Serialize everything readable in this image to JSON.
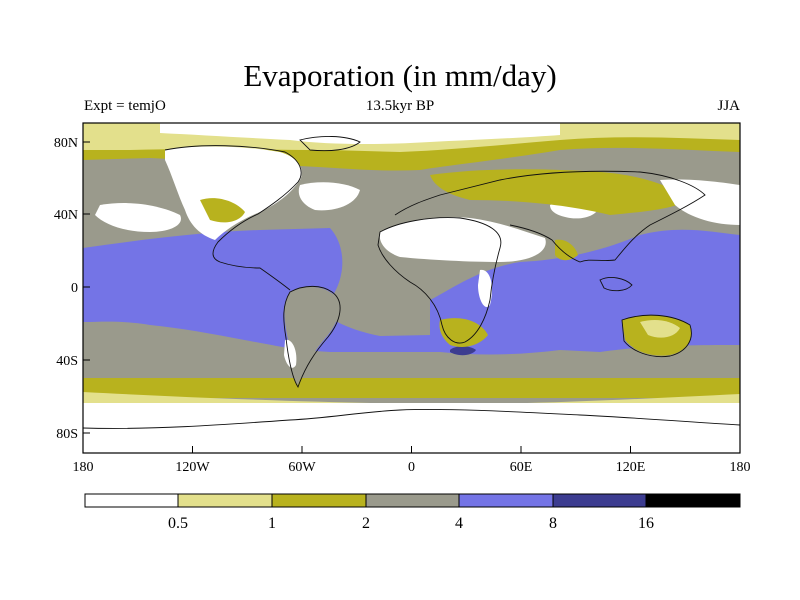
{
  "title": "Evaporation (in mm/day)",
  "subtitle_left": "Expt = temjO",
  "subtitle_center": "13.5kyr BP",
  "subtitle_right": "JJA",
  "lat_ticks": [
    "80N",
    "40N",
    "0",
    "40S",
    "80S"
  ],
  "lon_ticks": [
    "180",
    "120W",
    "60W",
    "0",
    "60E",
    "120E",
    "180"
  ],
  "colorbar": {
    "levels": [
      "0.5",
      "1",
      "2",
      "4",
      "8",
      "16"
    ],
    "colors": [
      "#ffffff",
      "#e3e08c",
      "#b8b21e",
      "#9a9a8c",
      "#7474e6",
      "#3c3c90",
      "#000000"
    ]
  },
  "palette": {
    "white": "#ffffff",
    "pale_yellow": "#e3e08c",
    "olive": "#b8b21e",
    "gray": "#9a9a8c",
    "blue": "#7474e6",
    "dark_blue": "#3c3c90",
    "black": "#000000",
    "coast": "#111111"
  }
}
